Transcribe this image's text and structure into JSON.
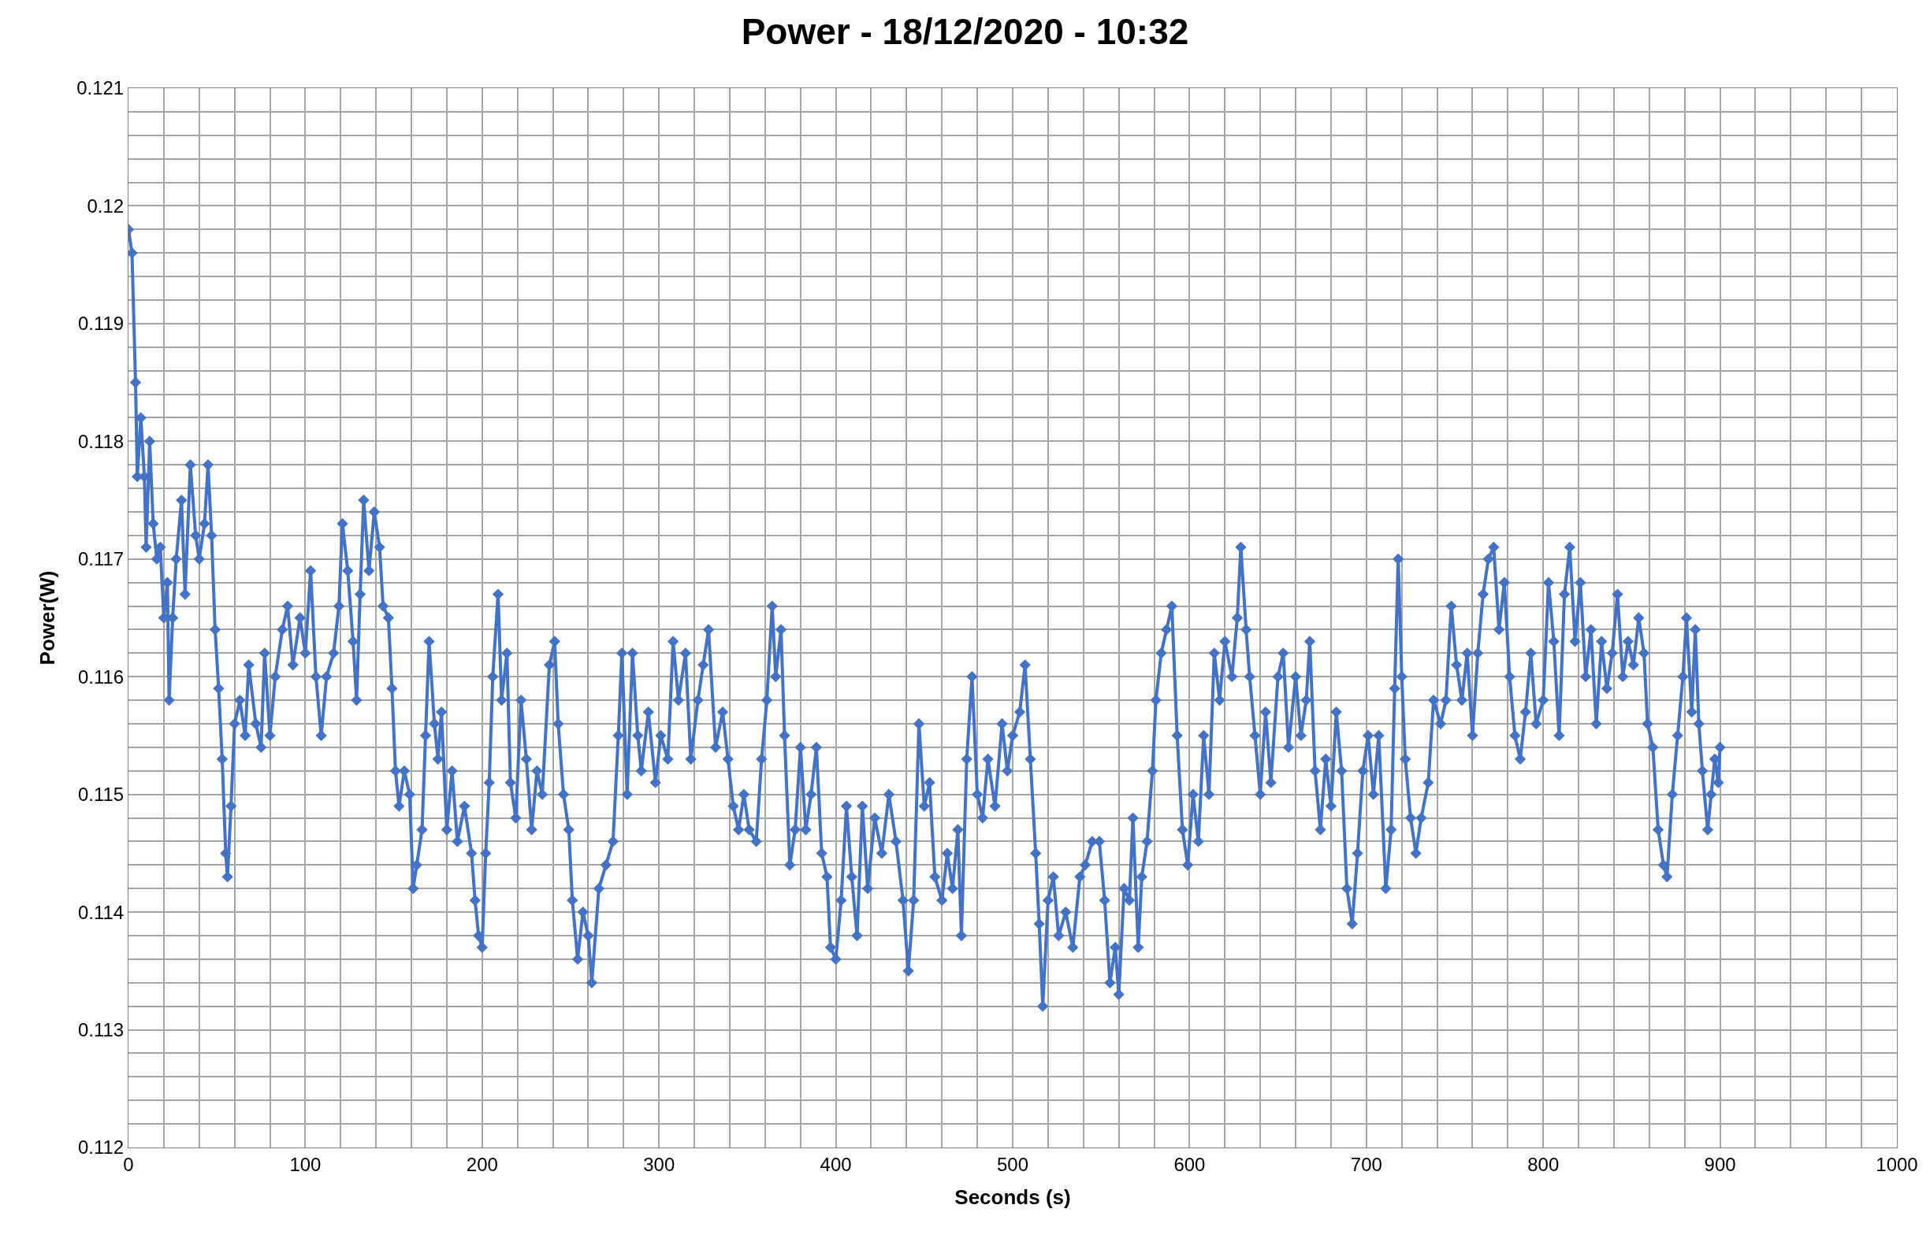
{
  "chart_data": {
    "type": "line",
    "title": "Power - 18/12/2020 - 10:32",
    "xlabel": "Seconds (s)",
    "ylabel": "Power(W)",
    "xlim": [
      0,
      1000
    ],
    "ylim": [
      0.112,
      0.121
    ],
    "xticks": [
      0,
      {
        "value": 20,
        "label": null
      },
      {
        "value": 40,
        "label": null
      },
      {
        "value": 60,
        "label": null
      },
      {
        "value": 80,
        "label": null
      },
      100,
      {
        "value": 120,
        "label": null
      },
      {
        "value": 140,
        "label": null
      },
      {
        "value": 160,
        "label": null
      },
      {
        "value": 180,
        "label": null
      },
      200,
      {
        "value": 220,
        "label": null
      },
      {
        "value": 240,
        "label": null
      },
      {
        "value": 260,
        "label": null
      },
      {
        "value": 280,
        "label": null
      },
      300,
      {
        "value": 320,
        "label": null
      },
      {
        "value": 340,
        "label": null
      },
      {
        "value": 360,
        "label": null
      },
      {
        "value": 380,
        "label": null
      },
      400,
      {
        "value": 420,
        "label": null
      },
      {
        "value": 440,
        "label": null
      },
      {
        "value": 460,
        "label": null
      },
      {
        "value": 480,
        "label": null
      },
      500,
      {
        "value": 520,
        "label": null
      },
      {
        "value": 540,
        "label": null
      },
      {
        "value": 560,
        "label": null
      },
      {
        "value": 580,
        "label": null
      },
      600,
      {
        "value": 620,
        "label": null
      },
      {
        "value": 640,
        "label": null
      },
      {
        "value": 660,
        "label": null
      },
      {
        "value": 680,
        "label": null
      },
      700,
      {
        "value": 720,
        "label": null
      },
      {
        "value": 740,
        "label": null
      },
      {
        "value": 760,
        "label": null
      },
      {
        "value": 780,
        "label": null
      },
      800,
      {
        "value": 820,
        "label": null
      },
      {
        "value": 840,
        "label": null
      },
      {
        "value": 860,
        "label": null
      },
      {
        "value": 880,
        "label": null
      },
      900,
      {
        "value": 920,
        "label": null
      },
      {
        "value": 940,
        "label": null
      },
      {
        "value": 960,
        "label": null
      },
      {
        "value": 980,
        "label": null
      },
      1000
    ],
    "yticks": [
      0.112,
      {
        "value": 0.1122,
        "label": null
      },
      {
        "value": 0.1124,
        "label": null
      },
      {
        "value": 0.1126,
        "label": null
      },
      {
        "value": 0.1128,
        "label": null
      },
      0.113,
      {
        "value": 0.1132,
        "label": null
      },
      {
        "value": 0.1134,
        "label": null
      },
      {
        "value": 0.1136,
        "label": null
      },
      {
        "value": 0.1138,
        "label": null
      },
      0.114,
      {
        "value": 0.1142,
        "label": null
      },
      {
        "value": 0.1144,
        "label": null
      },
      {
        "value": 0.1146,
        "label": null
      },
      {
        "value": 0.1148,
        "label": null
      },
      0.115,
      {
        "value": 0.1152,
        "label": null
      },
      {
        "value": 0.1154,
        "label": null
      },
      {
        "value": 0.1156,
        "label": null
      },
      {
        "value": 0.1158,
        "label": null
      },
      0.116,
      {
        "value": 0.1162,
        "label": null
      },
      {
        "value": 0.1164,
        "label": null
      },
      {
        "value": 0.1166,
        "label": null
      },
      {
        "value": 0.1168,
        "label": null
      },
      0.117,
      {
        "value": 0.1172,
        "label": null
      },
      {
        "value": 0.1174,
        "label": null
      },
      {
        "value": 0.1176,
        "label": null
      },
      {
        "value": 0.1178,
        "label": null
      },
      0.118,
      {
        "value": 0.1182,
        "label": null
      },
      {
        "value": 0.1184,
        "label": null
      },
      {
        "value": 0.1186,
        "label": null
      },
      {
        "value": 0.1188,
        "label": null
      },
      0.119,
      {
        "value": 0.1192,
        "label": null
      },
      {
        "value": 0.1194,
        "label": null
      },
      {
        "value": 0.1196,
        "label": null
      },
      {
        "value": 0.1198,
        "label": null
      },
      0.12,
      {
        "value": 0.1202,
        "label": null
      },
      {
        "value": 0.1204,
        "label": null
      },
      {
        "value": 0.1206,
        "label": null
      },
      {
        "value": 0.1208,
        "label": null
      },
      0.121
    ],
    "grid": true,
    "marker": "diamond",
    "line_style": "solid",
    "x": [
      0,
      2,
      4,
      5,
      7,
      9,
      10,
      12,
      14,
      16,
      18,
      20,
      22,
      23,
      25,
      27,
      30,
      32,
      35,
      38,
      40,
      43,
      45,
      47,
      49,
      51,
      53,
      55,
      56,
      58,
      60,
      63,
      66,
      68,
      72,
      75,
      77,
      80,
      83,
      87,
      90,
      93,
      97,
      100,
      103,
      106,
      109,
      112,
      116,
      119,
      121,
      124,
      127,
      129,
      131,
      133,
      136,
      139,
      142,
      144,
      147,
      149,
      151,
      153,
      156,
      159,
      161,
      163,
      166,
      168,
      170,
      173,
      175,
      177,
      180,
      183,
      186,
      190,
      194,
      196,
      198,
      200,
      202,
      204,
      206,
      209,
      211,
      214,
      216,
      219,
      222,
      225,
      228,
      231,
      234,
      238,
      241,
      243,
      246,
      249,
      251,
      254,
      257,
      260,
      262,
      266,
      270,
      274,
      277,
      279,
      282,
      285,
      288,
      290,
      294,
      298,
      301,
      305,
      308,
      311,
      315,
      318,
      322,
      325,
      328,
      332,
      336,
      339,
      342,
      345,
      348,
      351,
      355,
      358,
      361,
      364,
      366,
      369,
      371,
      374,
      377,
      380,
      383,
      386,
      389,
      392,
      395,
      397,
      400,
      403,
      406,
      409,
      412,
      415,
      418,
      422,
      426,
      430,
      434,
      438,
      441,
      444,
      447,
      450,
      453,
      456,
      460,
      463,
      466,
      469,
      471,
      474,
      477,
      480,
      483,
      486,
      490,
      494,
      497,
      500,
      504,
      507,
      510,
      513,
      515,
      517,
      520,
      523,
      526,
      530,
      534,
      538,
      541,
      545,
      549,
      552,
      555,
      558,
      560,
      563,
      566,
      568,
      571,
      573,
      576,
      579,
      581,
      584,
      587,
      590,
      593,
      596,
      599,
      602,
      605,
      608,
      611,
      614,
      617,
      620,
      624,
      627,
      629,
      632,
      634,
      637,
      640,
      643,
      646,
      650,
      653,
      656,
      660,
      663,
      666,
      668,
      671,
      674,
      677,
      680,
      683,
      686,
      689,
      692,
      695,
      698,
      701,
      704,
      707,
      711,
      714,
      716,
      718,
      720,
      722,
      725,
      728,
      731,
      735,
      738,
      742,
      745,
      748,
      751,
      754,
      757,
      760,
      763,
      766,
      769,
      772,
      775,
      778,
      781,
      784,
      787,
      790,
      793,
      796,
      800,
      803,
      806,
      809,
      812,
      815,
      818,
      821,
      824,
      827,
      830,
      833,
      836,
      839,
      842,
      845,
      848,
      851,
      854,
      857,
      859,
      862,
      865,
      868,
      870,
      873,
      876,
      879,
      881,
      884,
      886,
      888,
      890,
      893,
      895,
      897,
      899,
      900
    ],
    "series": [
      {
        "color": "#4472c4",
        "values": [
          0.1198,
          0.1196,
          0.1185,
          0.1177,
          0.1182,
          0.1177,
          0.1171,
          0.118,
          0.1173,
          0.117,
          0.1171,
          0.1165,
          0.1168,
          0.1158,
          0.1165,
          0.117,
          0.1175,
          0.1167,
          0.1178,
          0.1172,
          0.117,
          0.1173,
          0.1178,
          0.1172,
          0.1164,
          0.1159,
          0.1153,
          0.1145,
          0.1143,
          0.1149,
          0.1156,
          0.1158,
          0.1155,
          0.1161,
          0.1156,
          0.1154,
          0.1162,
          0.1155,
          0.116,
          0.1164,
          0.1166,
          0.1161,
          0.1165,
          0.1162,
          0.1169,
          0.116,
          0.1155,
          0.116,
          0.1162,
          0.1166,
          0.1173,
          0.1169,
          0.1163,
          0.1158,
          0.1167,
          0.1175,
          0.1169,
          0.1174,
          0.1171,
          0.1166,
          0.1165,
          0.1159,
          0.1152,
          0.1149,
          0.1152,
          0.115,
          0.1142,
          0.1144,
          0.1147,
          0.1155,
          0.1163,
          0.1156,
          0.1153,
          0.1157,
          0.1147,
          0.1152,
          0.1146,
          0.1149,
          0.1145,
          0.1141,
          0.1138,
          0.1137,
          0.1145,
          0.1151,
          0.116,
          0.1167,
          0.1158,
          0.1162,
          0.1151,
          0.1148,
          0.1158,
          0.1153,
          0.1147,
          0.1152,
          0.115,
          0.1161,
          0.1163,
          0.1156,
          0.115,
          0.1147,
          0.1141,
          0.1136,
          0.114,
          0.1138,
          0.1134,
          0.1142,
          0.1144,
          0.1146,
          0.1155,
          0.1162,
          0.115,
          0.1162,
          0.1155,
          0.1152,
          0.1157,
          0.1151,
          0.1155,
          0.1153,
          0.1163,
          0.1158,
          0.1162,
          0.1153,
          0.1158,
          0.1161,
          0.1164,
          0.1154,
          0.1157,
          0.1153,
          0.1149,
          0.1147,
          0.115,
          0.1147,
          0.1146,
          0.1153,
          0.1158,
          0.1166,
          0.116,
          0.1164,
          0.1155,
          0.1144,
          0.1147,
          0.1154,
          0.1147,
          0.115,
          0.1154,
          0.1145,
          0.1143,
          0.1137,
          0.1136,
          0.1141,
          0.1149,
          0.1143,
          0.1138,
          0.1149,
          0.1142,
          0.1148,
          0.1145,
          0.115,
          0.1146,
          0.1141,
          0.1135,
          0.1141,
          0.1156,
          0.1149,
          0.1151,
          0.1143,
          0.1141,
          0.1145,
          0.1142,
          0.1147,
          0.1138,
          0.1153,
          0.116,
          0.115,
          0.1148,
          0.1153,
          0.1149,
          0.1156,
          0.1152,
          0.1155,
          0.1157,
          0.1161,
          0.1153,
          0.1145,
          0.1139,
          0.1132,
          0.1141,
          0.1143,
          0.1138,
          0.114,
          0.1137,
          0.1143,
          0.1144,
          0.1146,
          0.1146,
          0.1141,
          0.1134,
          0.1137,
          0.1133,
          0.1142,
          0.1141,
          0.1148,
          0.1137,
          0.1143,
          0.1146,
          0.1152,
          0.1158,
          0.1162,
          0.1164,
          0.1166,
          0.1155,
          0.1147,
          0.1144,
          0.115,
          0.1146,
          0.1155,
          0.115,
          0.1162,
          0.1158,
          0.1163,
          0.116,
          0.1165,
          0.1171,
          0.1164,
          0.116,
          0.1155,
          0.115,
          0.1157,
          0.1151,
          0.116,
          0.1162,
          0.1154,
          0.116,
          0.1155,
          0.1158,
          0.1163,
          0.1152,
          0.1147,
          0.1153,
          0.1149,
          0.1157,
          0.1152,
          0.1142,
          0.1139,
          0.1145,
          0.1152,
          0.1155,
          0.115,
          0.1155,
          0.1142,
          0.1147,
          0.1159,
          0.117,
          0.116,
          0.1153,
          0.1148,
          0.1145,
          0.1148,
          0.1151,
          0.1158,
          0.1156,
          0.1158,
          0.1166,
          0.1161,
          0.1158,
          0.1162,
          0.1155,
          0.1162,
          0.1167,
          0.117,
          0.1171,
          0.1164,
          0.1168,
          0.116,
          0.1155,
          0.1153,
          0.1157,
          0.1162,
          0.1156,
          0.1158,
          0.1168,
          0.1163,
          0.1155,
          0.1167,
          0.1171,
          0.1163,
          0.1168,
          0.116,
          0.1164,
          0.1156,
          0.1163,
          0.1159,
          0.1162,
          0.1167,
          0.116,
          0.1163,
          0.1161,
          0.1165,
          0.1162,
          0.1156,
          0.1154,
          0.1147,
          0.1144,
          0.1143,
          0.115,
          0.1155,
          0.116,
          0.1165,
          0.1157,
          0.1164,
          0.1156,
          0.1152,
          0.1147,
          0.115,
          0.1153,
          0.1151,
          0.1154
        ]
      }
    ]
  }
}
